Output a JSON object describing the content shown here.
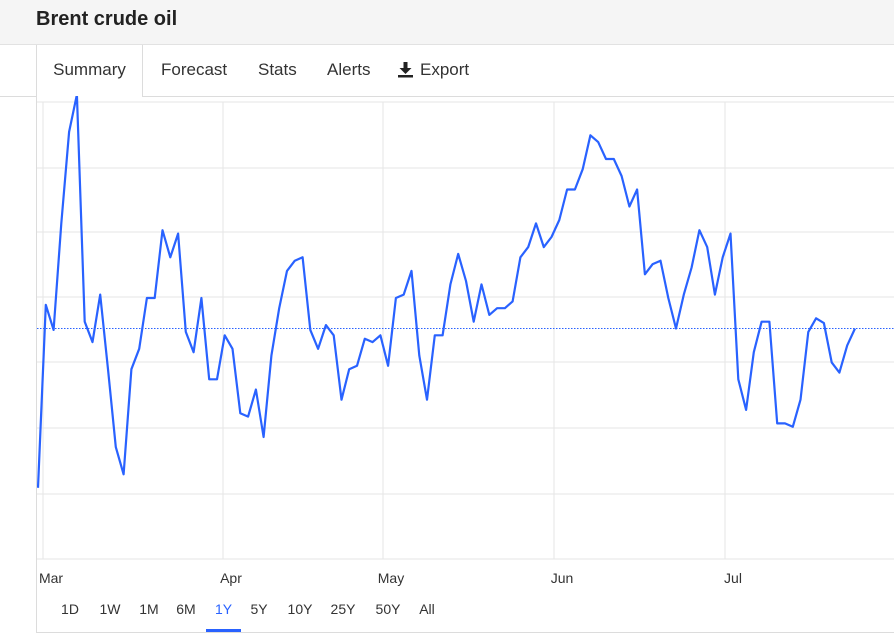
{
  "header": {
    "title": "Brent crude oil"
  },
  "tabs": [
    {
      "label": "Summary",
      "active": true
    },
    {
      "label": "Forecast",
      "active": false
    },
    {
      "label": "Stats",
      "active": false
    },
    {
      "label": "Alerts",
      "active": false
    },
    {
      "label": "Export",
      "active": false,
      "icon": "download-icon"
    }
  ],
  "ranges": {
    "items": [
      "1D",
      "1W",
      "1M",
      "6M",
      "1Y",
      "5Y",
      "10Y",
      "25Y",
      "50Y",
      "All"
    ],
    "selected": "1Y"
  },
  "colors": {
    "line": "#2962ff",
    "reference_line": "#2962ff",
    "grid": "#e6e6e6",
    "accent": "#2962ff"
  },
  "chart_data": {
    "type": "line",
    "title": "",
    "xlabel": "",
    "ylabel": "",
    "x_tick_labels": [
      "Mar",
      "Apr",
      "May",
      "Jun",
      "Jul"
    ],
    "y_axis_labels_visible": false,
    "grid": true,
    "reference_line": {
      "style": "dotted",
      "value": 0.0
    },
    "ylim": [
      -3.4,
      3.4
    ],
    "series": [
      {
        "values": [
          -2.35,
          0.35,
          -0.02,
          1.55,
          2.9,
          3.45,
          0.1,
          -0.2,
          0.5,
          -0.6,
          -1.75,
          -2.15,
          -0.6,
          -0.3,
          0.45,
          0.45,
          1.45,
          1.05,
          1.4,
          -0.05,
          -0.35,
          0.45,
          -0.75,
          -0.75,
          -0.1,
          -0.3,
          -1.25,
          -1.3,
          -0.9,
          -1.6,
          -0.4,
          0.3,
          0.85,
          1.0,
          1.05,
          -0.02,
          -0.3,
          0.05,
          -0.1,
          -1.05,
          -0.6,
          -0.55,
          -0.15,
          -0.2,
          -0.1,
          -0.55,
          0.45,
          0.5,
          0.85,
          -0.4,
          -1.05,
          -0.1,
          -0.1,
          0.65,
          1.1,
          0.7,
          0.1,
          0.65,
          0.2,
          0.3,
          0.3,
          0.4,
          1.05,
          1.2,
          1.55,
          1.2,
          1.35,
          1.6,
          2.05,
          2.05,
          2.35,
          2.85,
          2.75,
          2.5,
          2.5,
          2.25,
          1.8,
          2.05,
          0.8,
          0.95,
          1.0,
          0.45,
          0.0,
          0.5,
          0.9,
          1.45,
          1.2,
          0.5,
          1.05,
          1.4,
          -0.75,
          -1.2,
          -0.35,
          0.1,
          0.1,
          -1.4,
          -1.4,
          -1.45,
          -1.05,
          -0.05,
          0.15,
          0.08,
          -0.5,
          -0.65,
          -0.25,
          0.0
        ]
      }
    ]
  }
}
